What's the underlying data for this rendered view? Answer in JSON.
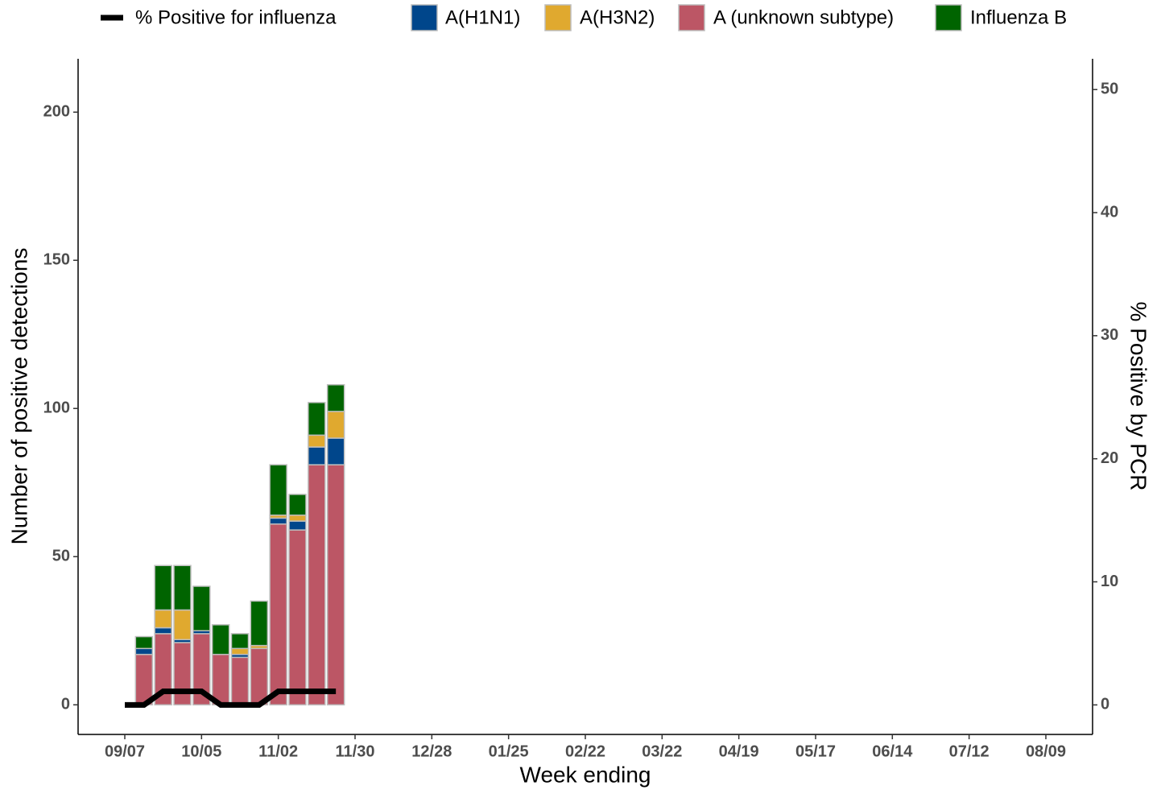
{
  "chart_data": {
    "type": "bar",
    "x_label": "Week ending",
    "y_label": "Number of positive detections",
    "y2_label": "% Positive by PCR",
    "categories": [
      "09/07",
      null,
      null,
      null,
      "10/05",
      null,
      null,
      null,
      "11/02",
      null,
      null,
      null,
      "11/30",
      null,
      null,
      null,
      "12/28",
      null,
      null,
      null,
      "01/25",
      null,
      null,
      null,
      "02/22",
      null,
      null,
      null,
      "03/22",
      null,
      null,
      null,
      "04/19",
      null,
      null,
      null,
      "05/17",
      null,
      null,
      null,
      "06/14",
      null,
      null,
      null,
      "07/12",
      null,
      null,
      null,
      "08/09"
    ],
    "ylim": [
      -10,
      218
    ],
    "yticks": [
      0,
      50,
      100,
      150,
      200
    ],
    "y2lim": [
      -2.4,
      52.5
    ],
    "y2ticks": [
      0,
      10,
      20,
      30,
      40,
      50
    ],
    "legend": "top",
    "series": [
      {
        "name": "% Positive for influenza",
        "type": "line",
        "axis": "y2",
        "color": "#000000",
        "values": [
          0,
          0,
          1.1,
          1.1,
          1.1,
          0,
          0,
          0,
          1.1,
          1.1,
          1.1,
          1.1,
          null,
          null,
          null,
          null,
          null,
          null,
          null,
          null,
          null,
          null,
          null,
          null,
          null,
          null,
          null,
          null,
          null,
          null,
          null,
          null,
          null,
          null,
          null,
          null,
          null,
          null,
          null,
          null,
          null,
          null,
          null,
          null,
          null,
          null,
          null,
          null,
          null
        ]
      },
      {
        "name": "A(H1N1)",
        "type": "bar",
        "color": "#00468b",
        "values": [
          null,
          2,
          2,
          1,
          1,
          0,
          1,
          0,
          2,
          3,
          6,
          9,
          null,
          null,
          null,
          null,
          null,
          null,
          null,
          null,
          null,
          null,
          null,
          null,
          null,
          null,
          null,
          null,
          null,
          null,
          null,
          null,
          null,
          null,
          null,
          null,
          null,
          null,
          null,
          null,
          null,
          null,
          null,
          null,
          null,
          null,
          null,
          null,
          null
        ]
      },
      {
        "name": "A(H3N2)",
        "type": "bar",
        "color": "#e0a92f",
        "values": [
          null,
          0,
          6,
          10,
          0,
          0,
          2,
          1,
          1,
          2,
          4,
          9,
          null,
          null,
          null,
          null,
          null,
          null,
          null,
          null,
          null,
          null,
          null,
          null,
          null,
          null,
          null,
          null,
          null,
          null,
          null,
          null,
          null,
          null,
          null,
          null,
          null,
          null,
          null,
          null,
          null,
          null,
          null,
          null,
          null,
          null,
          null,
          null,
          null
        ]
      },
      {
        "name": "A (unknown subtype)",
        "type": "bar",
        "color": "#bc5665",
        "values": [
          null,
          17,
          24,
          21,
          24,
          17,
          16,
          19,
          61,
          59,
          81,
          81,
          null,
          null,
          null,
          null,
          null,
          null,
          null,
          null,
          null,
          null,
          null,
          null,
          null,
          null,
          null,
          null,
          null,
          null,
          null,
          null,
          null,
          null,
          null,
          null,
          null,
          null,
          null,
          null,
          null,
          null,
          null,
          null,
          null,
          null,
          null,
          null,
          null
        ]
      },
      {
        "name": "Influenza B",
        "type": "bar",
        "color": "#006400",
        "values": [
          null,
          4,
          15,
          15,
          15,
          10,
          5,
          15,
          17,
          7,
          11,
          9,
          null,
          null,
          null,
          null,
          null,
          null,
          null,
          null,
          null,
          null,
          null,
          null,
          null,
          null,
          null,
          null,
          null,
          null,
          null,
          null,
          null,
          null,
          null,
          null,
          null,
          null,
          null,
          null,
          null,
          null,
          null,
          null,
          null,
          null,
          null,
          null,
          null
        ]
      }
    ]
  }
}
